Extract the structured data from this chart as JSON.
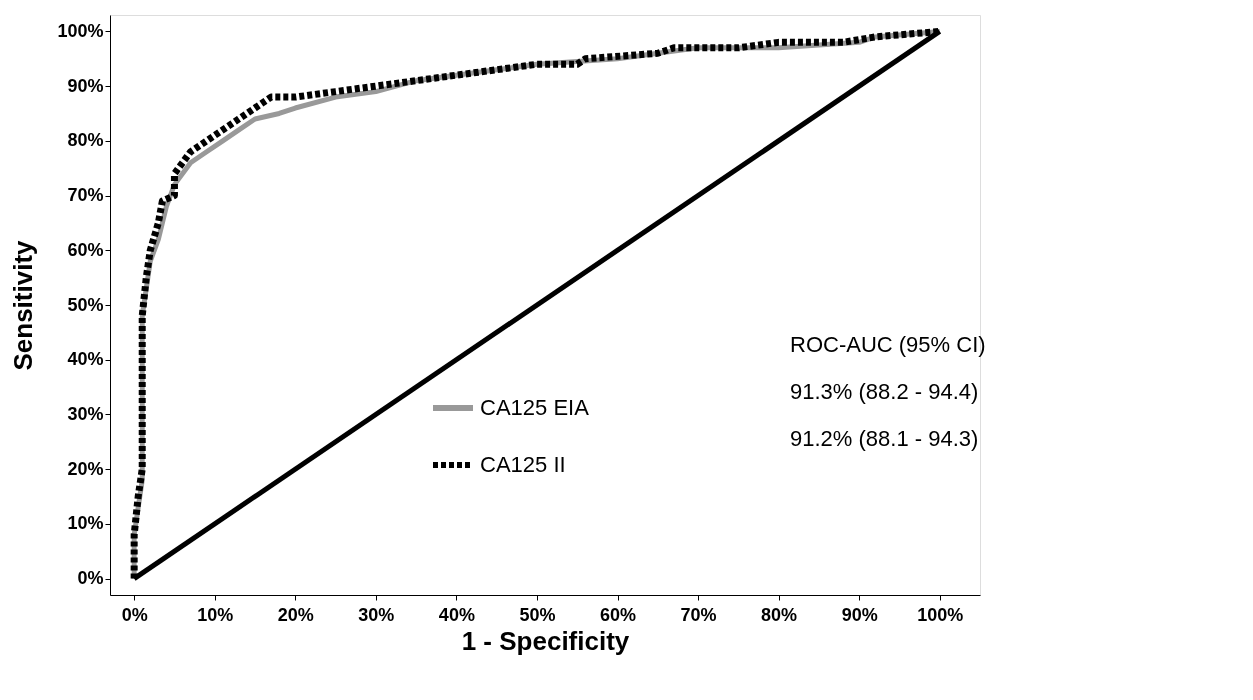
{
  "chart_data": {
    "type": "line",
    "xlabel": "1 - Specificity",
    "ylabel": "Sensitivity",
    "xlim": [
      -3,
      105
    ],
    "ylim": [
      -3,
      103
    ],
    "xticks": [
      {
        "value": 0,
        "label": "0%"
      },
      {
        "value": 10,
        "label": "10%"
      },
      {
        "value": 20,
        "label": "20%"
      },
      {
        "value": 30,
        "label": "30%"
      },
      {
        "value": 40,
        "label": "40%"
      },
      {
        "value": 50,
        "label": "50%"
      },
      {
        "value": 60,
        "label": "60%"
      },
      {
        "value": 70,
        "label": "70%"
      },
      {
        "value": 80,
        "label": "80%"
      },
      {
        "value": 90,
        "label": "90%"
      },
      {
        "value": 100,
        "label": "100%"
      }
    ],
    "yticks": [
      {
        "value": 0,
        "label": "0%"
      },
      {
        "value": 10,
        "label": "10%"
      },
      {
        "value": 20,
        "label": "20%"
      },
      {
        "value": 30,
        "label": "30%"
      },
      {
        "value": 40,
        "label": "40%"
      },
      {
        "value": 50,
        "label": "50%"
      },
      {
        "value": 60,
        "label": "60%"
      },
      {
        "value": 70,
        "label": "70%"
      },
      {
        "value": 80,
        "label": "80%"
      },
      {
        "value": 90,
        "label": "90%"
      },
      {
        "value": 100,
        "label": "100%"
      }
    ],
    "grid": false,
    "legend": "bottom right",
    "marker": "none",
    "series": [
      {
        "name": "CA125 EIA",
        "color": "#999999",
        "line_style": "solid",
        "x": [
          0,
          0,
          0.5,
          1,
          1,
          2,
          3,
          4,
          5,
          7,
          9,
          11,
          13,
          15,
          18,
          20,
          25,
          30,
          35,
          40,
          45,
          50,
          60,
          65,
          70,
          80,
          90,
          92,
          100
        ],
        "values": [
          0,
          8,
          13,
          18,
          48,
          58,
          62,
          68,
          72,
          76,
          78,
          80,
          82,
          84,
          85,
          86,
          88,
          89,
          91,
          92,
          93,
          94,
          95,
          96,
          97,
          97,
          98,
          99,
          100
        ]
      },
      {
        "name": "CA125 II",
        "color": "#000000",
        "line_style": "dotted",
        "x": [
          0,
          0,
          0.5,
          1,
          1,
          1.5,
          2,
          3,
          3.5,
          5,
          5,
          6,
          7,
          9,
          11,
          13,
          15,
          17,
          20,
          25,
          30,
          35,
          40,
          45,
          50,
          55,
          56,
          65,
          67,
          75,
          80,
          88,
          92,
          100
        ],
        "values": [
          0,
          8,
          15,
          20,
          48,
          55,
          60,
          65,
          69,
          70,
          74,
          76,
          78,
          80,
          82,
          84,
          86,
          88,
          88,
          89,
          90,
          91,
          92,
          93,
          94,
          94,
          95,
          96,
          97,
          97,
          98,
          98,
          99,
          100
        ]
      },
      {
        "color": "#000000",
        "line_style": "solid",
        "x": [
          0,
          100
        ],
        "values": [
          0,
          100
        ]
      }
    ],
    "annotations": [
      "ROC-AUC (95% CI)",
      "91.3%  (88.2 - 94.4)",
      "91.2%  (88.1 - 94.3)"
    ]
  }
}
